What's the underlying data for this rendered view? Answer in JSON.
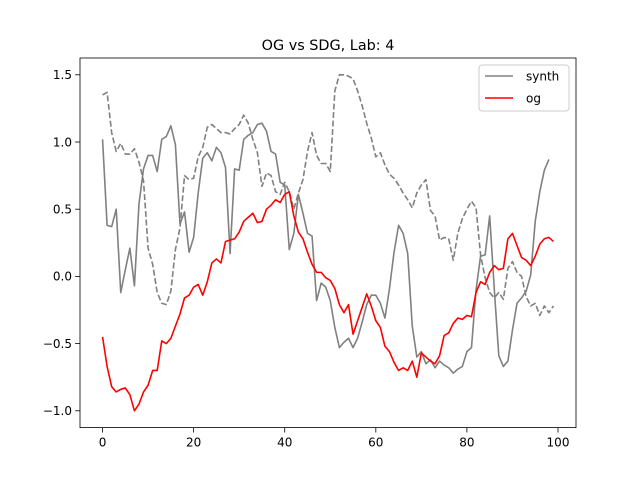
{
  "chart_data": {
    "type": "line",
    "title": "OG vs SDG, Lab: 4",
    "xlabel": "",
    "ylabel": "",
    "xlim": [
      -4.95,
      103.95
    ],
    "ylim": [
      -1.125,
      1.625
    ],
    "x_ticks": [
      0,
      20,
      40,
      60,
      80,
      100
    ],
    "y_ticks": [
      -1.0,
      -0.5,
      0.0,
      0.5,
      1.0,
      1.5
    ],
    "x_tick_labels": [
      "0",
      "20",
      "40",
      "60",
      "80",
      "100"
    ],
    "y_tick_labels": [
      "−1.0",
      "−0.5",
      "0.0",
      "0.5",
      "1.0",
      "1.5"
    ],
    "grid": false,
    "legend": {
      "position": "top-right",
      "entries": [
        "synth",
        "og"
      ]
    },
    "series": [
      {
        "name": "synth",
        "color": "#808080",
        "style": "solid",
        "values": [
          1.02,
          0.38,
          0.37,
          0.5,
          -0.12,
          0.05,
          0.21,
          -0.07,
          0.54,
          0.8,
          0.9,
          0.9,
          0.78,
          1.02,
          1.04,
          1.12,
          0.98,
          0.39,
          0.48,
          0.18,
          0.29,
          0.62,
          0.88,
          0.92,
          0.86,
          0.96,
          0.92,
          0.81,
          0.17,
          0.8,
          0.79,
          1.02,
          1.05,
          1.07,
          1.13,
          1.14,
          1.08,
          0.93,
          0.91,
          0.7,
          0.68,
          0.2,
          0.32,
          0.61,
          0.47,
          0.32,
          0.3,
          -0.18,
          -0.05,
          -0.08,
          -0.18,
          -0.38,
          -0.53,
          -0.49,
          -0.46,
          -0.53,
          -0.46,
          -0.34,
          -0.21,
          -0.14,
          -0.14,
          -0.2,
          -0.31,
          -0.09,
          0.18,
          0.38,
          0.32,
          0.17,
          -0.37,
          -0.6,
          -0.56,
          -0.65,
          -0.62,
          -0.68,
          -0.63,
          -0.66,
          -0.68,
          -0.72,
          -0.69,
          -0.67,
          -0.56,
          -0.53,
          -0.1,
          0.15,
          0.16,
          0.45,
          -0.09,
          -0.59,
          -0.67,
          -0.63,
          -0.4,
          -0.2,
          -0.16,
          -0.11,
          0.01,
          0.41,
          0.63,
          0.79,
          0.87
        ]
      },
      {
        "name": "",
        "color": "#808080",
        "style": "dashed",
        "values": [
          1.35,
          1.37,
          1.07,
          0.93,
          0.99,
          0.91,
          0.91,
          0.95,
          0.85,
          0.71,
          0.21,
          0.09,
          -0.12,
          -0.2,
          -0.21,
          -0.11,
          0.2,
          0.36,
          0.75,
          0.72,
          0.73,
          0.89,
          0.96,
          1.11,
          1.13,
          1.1,
          1.07,
          1.07,
          1.06,
          1.1,
          1.13,
          1.2,
          1.14,
          1.02,
          0.92,
          0.67,
          0.77,
          0.75,
          0.63,
          0.61,
          0.7,
          0.63,
          0.5,
          0.62,
          0.72,
          0.93,
          1.07,
          0.9,
          0.84,
          0.84,
          0.78,
          1.38,
          1.5,
          1.5,
          1.49,
          1.47,
          1.38,
          1.27,
          1.14,
          1.03,
          0.89,
          0.92,
          0.83,
          0.76,
          0.73,
          0.68,
          0.62,
          0.57,
          0.51,
          0.62,
          0.68,
          0.72,
          0.49,
          0.45,
          0.27,
          0.29,
          0.28,
          0.12,
          0.32,
          0.43,
          0.5,
          0.56,
          0.51,
          0.16,
          -0.01,
          -0.12,
          -0.16,
          -0.12,
          -0.17,
          0.06,
          0.11,
          0.03,
          0.0,
          -0.15,
          -0.22,
          -0.2,
          -0.29,
          -0.22,
          -0.27,
          -0.22
        ]
      },
      {
        "name": "og",
        "color": "#ff0000",
        "style": "solid",
        "values": [
          -0.45,
          -0.67,
          -0.82,
          -0.86,
          -0.84,
          -0.83,
          -0.88,
          -1.0,
          -0.95,
          -0.86,
          -0.81,
          -0.7,
          -0.7,
          -0.48,
          -0.5,
          -0.46,
          -0.37,
          -0.28,
          -0.16,
          -0.14,
          -0.08,
          -0.06,
          -0.14,
          -0.04,
          0.1,
          0.13,
          0.1,
          0.26,
          0.27,
          0.28,
          0.33,
          0.41,
          0.44,
          0.47,
          0.4,
          0.41,
          0.5,
          0.53,
          0.57,
          0.55,
          0.61,
          0.63,
          0.45,
          0.33,
          0.28,
          0.18,
          0.09,
          0.03,
          0.03,
          -0.01,
          -0.03,
          -0.09,
          -0.21,
          -0.27,
          -0.21,
          -0.43,
          -0.33,
          -0.23,
          -0.13,
          -0.22,
          -0.33,
          -0.38,
          -0.52,
          -0.56,
          -0.64,
          -0.7,
          -0.68,
          -0.7,
          -0.63,
          -0.75,
          -0.57,
          -0.6,
          -0.63,
          -0.65,
          -0.59,
          -0.44,
          -0.42,
          -0.35,
          -0.31,
          -0.32,
          -0.29,
          -0.3,
          -0.12,
          -0.04,
          -0.06,
          0.03,
          0.08,
          0.05,
          0.06,
          0.28,
          0.32,
          0.23,
          0.14,
          0.12,
          0.08,
          0.15,
          0.24,
          0.28,
          0.29,
          0.26
        ]
      }
    ]
  }
}
